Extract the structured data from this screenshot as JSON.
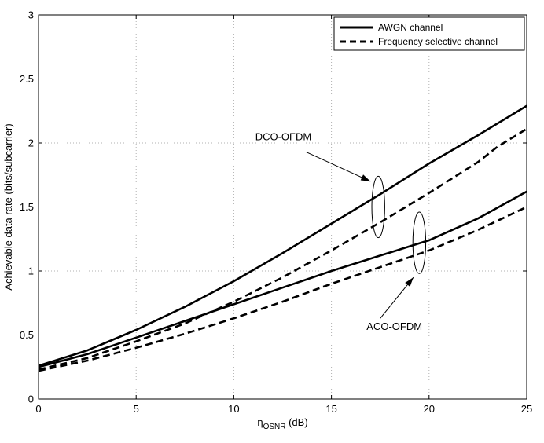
{
  "chart_data": {
    "type": "line",
    "title": "",
    "xlabel_main": "η",
    "xlabel_sub": "OSNR",
    "xlabel_unit": " (dB)",
    "ylabel": "Achievable data rate (bits/subcarrier)",
    "xlim": [
      0,
      25
    ],
    "ylim": [
      0,
      3
    ],
    "xticks": [
      0,
      5,
      10,
      15,
      20,
      25
    ],
    "yticks": [
      0,
      0.5,
      1,
      1.5,
      2,
      2.5,
      3
    ],
    "xtick_labels": [
      "0",
      "5",
      "10",
      "15",
      "20",
      "25"
    ],
    "ytick_labels": [
      "0",
      "0.5",
      "1",
      "1.5",
      "2",
      "2.5",
      "3"
    ],
    "grid": true,
    "legend_position": "top-right",
    "legend": [
      {
        "label": "AWGN channel",
        "style": "solid"
      },
      {
        "label": "Frequency selective channel",
        "style": "dashed"
      }
    ],
    "series": [
      {
        "name": "DCO-OFDM AWGN channel",
        "style": "solid",
        "x": [
          0,
          2.5,
          5,
          7.5,
          10,
          12.5,
          15,
          17.5,
          20,
          22.5,
          25
        ],
        "y": [
          0.26,
          0.38,
          0.54,
          0.72,
          0.92,
          1.14,
          1.37,
          1.6,
          1.84,
          2.06,
          2.29
        ]
      },
      {
        "name": "DCO-OFDM Frequency selective channel",
        "style": "dashed",
        "x": [
          0,
          2.5,
          5,
          7.5,
          10,
          12.5,
          15,
          17.5,
          20,
          22.5,
          23.5,
          25
        ],
        "y": [
          0.23,
          0.32,
          0.45,
          0.59,
          0.76,
          0.95,
          1.16,
          1.38,
          1.61,
          1.85,
          1.97,
          2.11
        ]
      },
      {
        "name": "ACO-OFDM AWGN channel",
        "style": "solid",
        "x": [
          0,
          2.5,
          5,
          7.5,
          10,
          12.5,
          15,
          17.5,
          20,
          22.5,
          25
        ],
        "y": [
          0.25,
          0.35,
          0.48,
          0.61,
          0.74,
          0.87,
          1.0,
          1.12,
          1.24,
          1.41,
          1.62
        ]
      },
      {
        "name": "ACO-OFDM Frequency selective channel",
        "style": "dashed",
        "x": [
          0,
          2.5,
          5,
          7.5,
          10,
          12.5,
          15,
          17.5,
          20,
          22.5,
          25
        ],
        "y": [
          0.22,
          0.3,
          0.4,
          0.51,
          0.63,
          0.76,
          0.9,
          1.03,
          1.16,
          1.32,
          1.5
        ]
      }
    ],
    "annotations": [
      {
        "label": "DCO-OFDM",
        "text_at": [
          11.1,
          2.02
        ],
        "arrow_from": [
          13.7,
          1.93
        ],
        "arrow_to": [
          17.0,
          1.7
        ],
        "ellipse_center": [
          17.4,
          1.5
        ],
        "ellipse_radius": [
          0.33,
          0.24
        ]
      },
      {
        "label": "ACO-OFDM",
        "text_at": [
          16.8,
          0.54
        ],
        "arrow_from": [
          17.5,
          0.63
        ],
        "arrow_to": [
          19.2,
          0.95
        ],
        "ellipse_center": [
          19.5,
          1.22
        ],
        "ellipse_radius": [
          0.33,
          0.24
        ]
      }
    ]
  }
}
